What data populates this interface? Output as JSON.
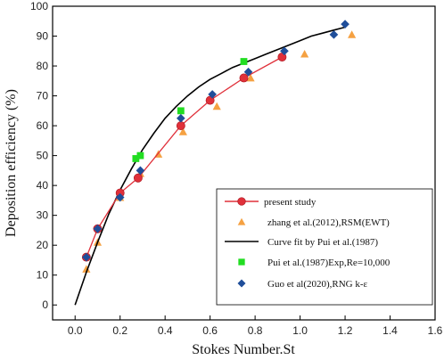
{
  "chart_data": {
    "type": "scatter",
    "xlabel": "Stokes Number.St",
    "ylabel": "Deposition efficiency (%)",
    "xlim": [
      -0.1,
      1.6
    ],
    "ylim": [
      -5,
      100
    ],
    "xticks": [
      "0.0",
      "0.2",
      "0.4",
      "0.6",
      "0.8",
      "1.0",
      "1.2",
      "1.4",
      "1.6"
    ],
    "yticks": [
      "0",
      "10",
      "20",
      "30",
      "40",
      "50",
      "60",
      "70",
      "80",
      "90",
      "100"
    ],
    "grid": false,
    "legend_position": "bottom-right",
    "series": [
      {
        "name": "present study",
        "style": "line-circle",
        "color": "#e0303a",
        "x": [
          0.05,
          0.1,
          0.2,
          0.28,
          0.47,
          0.6,
          0.75,
          0.92
        ],
        "y": [
          16,
          25.5,
          37.5,
          42.5,
          60,
          68.5,
          76,
          83
        ]
      },
      {
        "name": "zhang et al.(2012),RSM(EWT)",
        "style": "triangle",
        "color": "#f5a142",
        "x": [
          0.05,
          0.1,
          0.2,
          0.29,
          0.37,
          0.48,
          0.63,
          0.78,
          1.02,
          1.23
        ],
        "y": [
          12,
          21,
          36,
          44,
          50.5,
          58,
          66.5,
          76,
          84,
          90.5
        ]
      },
      {
        "name": "Curve fit by Pui et al.(1987)",
        "style": "line",
        "color": "#000000",
        "x": [
          0.0,
          0.05,
          0.1,
          0.15,
          0.2,
          0.25,
          0.3,
          0.35,
          0.4,
          0.45,
          0.5,
          0.55,
          0.6,
          0.65,
          0.7,
          0.75,
          0.8,
          0.85,
          0.9,
          0.95,
          1.0,
          1.05,
          1.1,
          1.15,
          1.2
        ],
        "y": [
          0,
          11,
          21,
          30.5,
          38.5,
          45.5,
          52,
          57.5,
          62.5,
          66.5,
          70,
          73,
          75.5,
          77.5,
          79.5,
          81,
          82.5,
          84,
          85.5,
          87,
          88.5,
          90,
          91,
          92,
          93
        ]
      },
      {
        "name": "Pui et al.(1987)Exp,Re=10,000",
        "style": "square",
        "color": "#22dd22",
        "x": [
          0.27,
          0.29,
          0.47,
          0.75
        ],
        "y": [
          49,
          50,
          65,
          81.5
        ]
      },
      {
        "name": "Guo et al(2020),RNG k-ε",
        "style": "diamond",
        "color": "#1f4e9a",
        "x": [
          0.05,
          0.1,
          0.2,
          0.29,
          0.47,
          0.61,
          0.77,
          0.93,
          1.15,
          1.2
        ],
        "y": [
          16,
          25.5,
          36,
          45,
          62.5,
          70.5,
          78,
          85,
          90.5,
          94
        ]
      }
    ]
  }
}
